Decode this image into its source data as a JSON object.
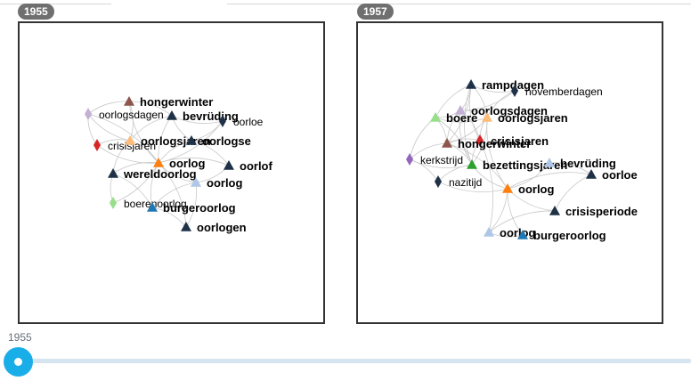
{
  "colors": {
    "navy": "#1e3147",
    "brown": "#8c564b",
    "orange": "#ff7f0e",
    "peach": "#ffbb78",
    "lavender": "#c5b0d5",
    "lightblue": "#aec7e8",
    "blue": "#1f77b4",
    "red": "#d62728",
    "lightgreen": "#98df8a",
    "green": "#2ca02c",
    "purple": "#9467bd",
    "edge": "#c8c8c8"
  },
  "timeline": {
    "current_year": "1955"
  },
  "graphs": [
    {
      "year": "1955",
      "nodes": [
        {
          "id": "hongerwinter",
          "label": "hongerwinter",
          "shape": "triangle",
          "color": "brown",
          "bold": true
        },
        {
          "id": "oorlogsdagen",
          "label": "oorlogsdagen",
          "shape": "diamond",
          "color": "lavender",
          "bold": false
        },
        {
          "id": "bevrüding",
          "label": "bevrüding",
          "shape": "triangle",
          "color": "navy",
          "bold": true
        },
        {
          "id": "oorloe",
          "label": "oorloe",
          "shape": "diamond",
          "color": "navy",
          "bold": false
        },
        {
          "id": "crisisjaren",
          "label": "crisisjaren",
          "shape": "diamond",
          "color": "red",
          "bold": false
        },
        {
          "id": "oorlogsjaren",
          "label": "oorlogsjaren",
          "shape": "triangle",
          "color": "peach",
          "bold": true
        },
        {
          "id": "oorlogse",
          "label": "oorlogse",
          "shape": "triangle",
          "color": "navy",
          "bold": true
        },
        {
          "id": "oorlog",
          "label": "oorlog",
          "shape": "triangle",
          "color": "orange",
          "bold": true
        },
        {
          "id": "wereldoorlog",
          "label": "wereldoorlog",
          "shape": "triangle",
          "color": "navy",
          "bold": true
        },
        {
          "id": "oorlof",
          "label": "oorlof",
          "shape": "triangle",
          "color": "navy",
          "bold": true
        },
        {
          "id": "oorlog2",
          "label": "oorlog",
          "shape": "triangle",
          "color": "lightblue",
          "bold": true
        },
        {
          "id": "boerenoorlog",
          "label": "boerenoorlog",
          "shape": "diamond",
          "color": "lightgreen",
          "bold": false
        },
        {
          "id": "burgeroorlog",
          "label": "burgeroorlog",
          "shape": "triangle",
          "color": "blue",
          "bold": true
        },
        {
          "id": "oorlogen",
          "label": "oorlogen",
          "shape": "triangle",
          "color": "navy",
          "bold": true
        }
      ],
      "edges": [
        [
          "oorlog",
          "hongerwinter"
        ],
        [
          "oorlog",
          "oorlogsdagen"
        ],
        [
          "oorlog",
          "bevrüding"
        ],
        [
          "oorlog",
          "oorloe"
        ],
        [
          "oorlog",
          "crisisjaren"
        ],
        [
          "oorlog",
          "oorlogsjaren"
        ],
        [
          "oorlog",
          "oorlogse"
        ],
        [
          "oorlog",
          "wereldoorlog"
        ],
        [
          "oorlog",
          "oorlof"
        ],
        [
          "oorlog",
          "oorlog2"
        ],
        [
          "oorlog",
          "boerenoorlog"
        ],
        [
          "oorlog",
          "burgeroorlog"
        ],
        [
          "oorlog",
          "oorlogen"
        ],
        [
          "oorlogsjaren",
          "hongerwinter"
        ],
        [
          "oorlogsjaren",
          "oorlogsdagen"
        ],
        [
          "oorlogsjaren",
          "crisisjaren"
        ],
        [
          "oorlogsjaren",
          "bevrüding"
        ],
        [
          "oorlogsjaren",
          "wereldoorlog"
        ],
        [
          "oorlogse",
          "bevrüding"
        ],
        [
          "oorlogse",
          "oorloe"
        ],
        [
          "oorlogse",
          "oorlof"
        ],
        [
          "wereldoorlog",
          "boerenoorlog"
        ],
        [
          "wereldoorlog",
          "burgeroorlog"
        ],
        [
          "oorlog2",
          "burgeroorlog"
        ],
        [
          "oorlog2",
          "oorlogen"
        ],
        [
          "hongerwinter",
          "oorlogsdagen"
        ],
        [
          "hongerwinter",
          "bevrüding"
        ],
        [
          "oorlogsdagen",
          "crisisjaren"
        ],
        [
          "burgeroorlog",
          "oorlogen"
        ],
        [
          "bevrüding",
          "oorloe"
        ],
        [
          "oorlof",
          "oorlog2"
        ]
      ]
    },
    {
      "year": "1957",
      "nodes": [
        {
          "id": "rampdagen",
          "label": "rampdagen",
          "shape": "triangle",
          "color": "navy",
          "bold": true
        },
        {
          "id": "novemberdagen",
          "label": "novemberdagen",
          "shape": "diamond",
          "color": "navy",
          "bold": false
        },
        {
          "id": "oorlogsdagen",
          "label": "oorlogsdagen",
          "shape": "triangle",
          "color": "lavender",
          "bold": true
        },
        {
          "id": "boere",
          "label": "boere",
          "shape": "triangle",
          "color": "lightgreen",
          "bold": true
        },
        {
          "id": "oorlogsjaren",
          "label": "oorlogsjaren",
          "shape": "triangle",
          "color": "peach",
          "bold": true
        },
        {
          "id": "crisisjaren",
          "label": "crisisjaren",
          "shape": "diamond",
          "color": "red",
          "bold": true
        },
        {
          "id": "hongerwinter",
          "label": "hongerwinter",
          "shape": "triangle",
          "color": "brown",
          "bold": true
        },
        {
          "id": "kerkstrijd",
          "label": "kerkstrijd",
          "shape": "diamond",
          "color": "purple",
          "bold": false
        },
        {
          "id": "bezettingsjaren",
          "label": "bezettingsjaren",
          "shape": "triangle",
          "color": "green",
          "bold": true
        },
        {
          "id": "bevrüding",
          "label": "bevrüding",
          "shape": "triangle",
          "color": "lightblue",
          "bold": true
        },
        {
          "id": "oorloe",
          "label": "oorloe",
          "shape": "triangle",
          "color": "navy",
          "bold": true
        },
        {
          "id": "nazitijd",
          "label": "nazitijd",
          "shape": "diamond",
          "color": "navy",
          "bold": false
        },
        {
          "id": "oorlog",
          "label": "oorlog",
          "shape": "triangle",
          "color": "orange",
          "bold": true
        },
        {
          "id": "crisisperiode",
          "label": "crisisperiode",
          "shape": "triangle",
          "color": "navy",
          "bold": true
        },
        {
          "id": "oorlog2",
          "label": "oorlog",
          "shape": "triangle",
          "color": "lightblue",
          "bold": true
        },
        {
          "id": "burgeroorlog",
          "label": "burgeroorlog",
          "shape": "triangle",
          "color": "blue",
          "bold": true
        }
      ],
      "edges": [
        [
          "oorlog",
          "bezettingsjaren"
        ],
        [
          "oorlog",
          "bevrüding"
        ],
        [
          "oorlog",
          "oorloe"
        ],
        [
          "oorlog",
          "crisisperiode"
        ],
        [
          "oorlog",
          "oorlog2"
        ],
        [
          "oorlog",
          "burgeroorlog"
        ],
        [
          "oorlog",
          "nazitijd"
        ],
        [
          "oorlog",
          "hongerwinter"
        ],
        [
          "oorlog",
          "oorlogsjaren"
        ],
        [
          "bezettingsjaren",
          "oorlogsjaren"
        ],
        [
          "bezettingsjaren",
          "oorlogsdagen"
        ],
        [
          "bezettingsjaren",
          "hongerwinter"
        ],
        [
          "bezettingsjaren",
          "kerkstrijd"
        ],
        [
          "bezettingsjaren",
          "nazitijd"
        ],
        [
          "bezettingsjaren",
          "crisisjaren"
        ],
        [
          "bezettingsjaren",
          "boere"
        ],
        [
          "bezettingsjaren",
          "rampdagen"
        ],
        [
          "oorlogsjaren",
          "rampdagen"
        ],
        [
          "oorlogsjaren",
          "novemberdagen"
        ],
        [
          "oorlogsjaren",
          "oorlogsdagen"
        ],
        [
          "oorlogsjaren",
          "boere"
        ],
        [
          "oorlogsjaren",
          "crisisjaren"
        ],
        [
          "oorlogsjaren",
          "hongerwinter"
        ],
        [
          "oorlogsdagen",
          "rampdagen"
        ],
        [
          "oorlogsdagen",
          "boere"
        ],
        [
          "oorlogsdagen",
          "hongerwinter"
        ],
        [
          "oorlogsdagen",
          "crisisjaren"
        ],
        [
          "oorlogsdagen",
          "novemberdagen"
        ],
        [
          "boere",
          "hongerwinter"
        ],
        [
          "boere",
          "kerkstrijd"
        ],
        [
          "boere",
          "rampdagen"
        ],
        [
          "hongerwinter",
          "kerkstrijd"
        ],
        [
          "hongerwinter",
          "crisisjaren"
        ],
        [
          "hongerwinter",
          "rampdagen"
        ],
        [
          "crisisjaren",
          "rampdagen"
        ],
        [
          "rampdagen",
          "novemberdagen"
        ],
        [
          "kerkstrijd",
          "nazitijd"
        ],
        [
          "crisisperiode",
          "oorlog2"
        ],
        [
          "crisisperiode",
          "oorloe"
        ],
        [
          "oorlog2",
          "burgeroorlog"
        ],
        [
          "bevrüding",
          "oorloe"
        ],
        [
          "oorlog2",
          "crisisjaren"
        ]
      ]
    }
  ]
}
